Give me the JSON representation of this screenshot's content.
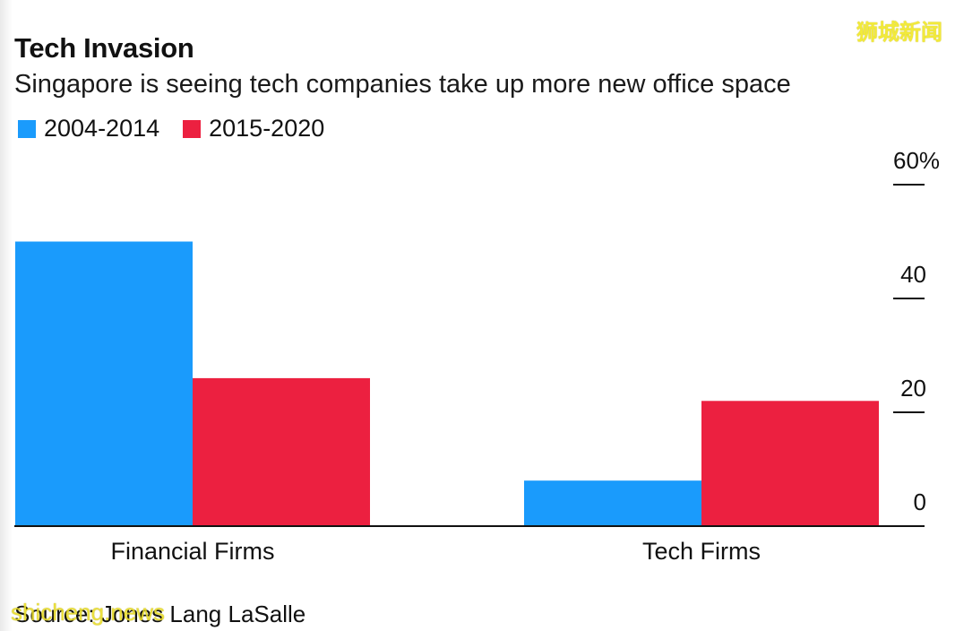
{
  "watermark_cn": "狮城新闻",
  "watermark_en": "shicheng.news",
  "source": "Source: Jones Lang LaSalle",
  "colors": {
    "series1": "#1a9bfc",
    "series2": "#ec2040",
    "axis": "#111111"
  },
  "chart_data": {
    "type": "bar",
    "title": "Tech Invasion",
    "subtitle": "Singapore is seeing tech companies take up more new office space",
    "categories": [
      "Financial Firms",
      "Tech Firms"
    ],
    "series": [
      {
        "name": "2004-2014",
        "values": [
          50,
          8
        ]
      },
      {
        "name": "2015-2020",
        "values": [
          26,
          22
        ]
      }
    ],
    "yticks": [
      {
        "value": 0,
        "label": "0"
      },
      {
        "value": 20,
        "label": "20"
      },
      {
        "value": 40,
        "label": "40"
      },
      {
        "value": 60,
        "label": "60%"
      }
    ],
    "ylim": [
      0,
      60
    ],
    "xlabel": "",
    "ylabel": "",
    "legend_position": "top-left",
    "grid": false
  }
}
